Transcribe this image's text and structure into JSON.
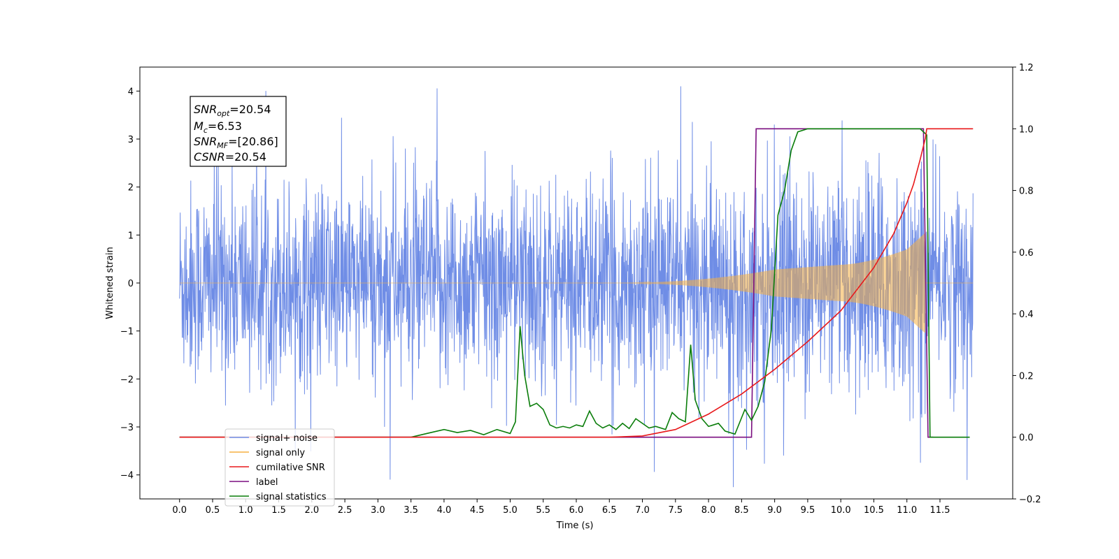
{
  "chart_data": {
    "type": "line",
    "xlabel": "Time (s)",
    "ylabel": "Whitened strain",
    "xlim": [
      -0.6,
      12.6
    ],
    "ylim_left": [
      -4.5,
      4.5
    ],
    "ylim_right": [
      -0.2,
      1.2
    ],
    "x_ticks": [
      "0.0",
      "0.5",
      "1.0",
      "1.5",
      "2.0",
      "2.5",
      "3.0",
      "3.5",
      "4.0",
      "4.5",
      "5.0",
      "5.5",
      "6.0",
      "6.5",
      "7.0",
      "7.5",
      "8.0",
      "8.5",
      "9.0",
      "9.5",
      "10.0",
      "10.5",
      "11.0",
      "11.5"
    ],
    "y_ticks_left": [
      "4",
      "3",
      "2",
      "1",
      "0",
      "−1",
      "−2",
      "−3",
      "−4"
    ],
    "y_ticks_right": [
      "1.2",
      "1.0",
      "0.8",
      "0.6",
      "0.4",
      "0.2",
      "0.0",
      "−0.2"
    ],
    "legend_placement": "lower-left",
    "annotation": {
      "snr_opt": "=20.54",
      "mc": "=6.53",
      "snr_mf": "=[20.86]",
      "csnr": "=20.54"
    },
    "series": [
      {
        "name": "signal+ noise",
        "color": "#6f8de6",
        "axis": "left",
        "description_values": {
          "t_start": 0.0,
          "t_end": 12.0,
          "noise_std": 1.0,
          "peak_max": 4.05,
          "peak_min": -4.1
        }
      },
      {
        "name": "signal only",
        "color": "#f5b041",
        "axis": "left",
        "chirp": {
          "t_start": 6.5,
          "t_merger": 11.28,
          "amp_at_9": 0.28,
          "amp_at_10": 0.38,
          "amp_at_11": 0.7,
          "amp_peak": 1.05
        }
      },
      {
        "name": "cumilative SNR",
        "color": "#e8191b",
        "axis": "right",
        "points": [
          [
            0.0,
            0.0
          ],
          [
            6.5,
            0.0
          ],
          [
            7.0,
            0.004
          ],
          [
            7.5,
            0.025
          ],
          [
            8.0,
            0.075
          ],
          [
            8.5,
            0.14
          ],
          [
            9.0,
            0.22
          ],
          [
            9.5,
            0.31
          ],
          [
            10.0,
            0.41
          ],
          [
            10.5,
            0.55
          ],
          [
            10.8,
            0.66
          ],
          [
            11.0,
            0.76
          ],
          [
            11.1,
            0.82
          ],
          [
            11.2,
            0.9
          ],
          [
            11.28,
            0.97
          ],
          [
            11.3,
            1.0
          ],
          [
            11.6,
            1.0
          ],
          [
            12.0,
            1.0
          ]
        ]
      },
      {
        "name": "label",
        "color": "#7b0f80",
        "axis": "right",
        "points": [
          [
            0.0,
            0.0
          ],
          [
            8.65,
            0.0
          ],
          [
            8.72,
            1.0
          ],
          [
            11.25,
            1.0
          ],
          [
            11.32,
            0.0
          ],
          [
            11.4,
            0.0
          ]
        ]
      },
      {
        "name": "signal statistics",
        "color": "#0a7d0a",
        "axis": "right",
        "points": [
          [
            0.0,
            0.0
          ],
          [
            3.5,
            0.0
          ],
          [
            3.8,
            0.015
          ],
          [
            4.0,
            0.025
          ],
          [
            4.2,
            0.015
          ],
          [
            4.4,
            0.022
          ],
          [
            4.6,
            0.008
          ],
          [
            4.8,
            0.025
          ],
          [
            5.0,
            0.012
          ],
          [
            5.08,
            0.05
          ],
          [
            5.15,
            0.36
          ],
          [
            5.22,
            0.2
          ],
          [
            5.3,
            0.1
          ],
          [
            5.4,
            0.11
          ],
          [
            5.5,
            0.09
          ],
          [
            5.6,
            0.04
          ],
          [
            5.7,
            0.03
          ],
          [
            5.8,
            0.035
          ],
          [
            5.9,
            0.03
          ],
          [
            6.0,
            0.04
          ],
          [
            6.1,
            0.035
          ],
          [
            6.2,
            0.085
          ],
          [
            6.3,
            0.045
          ],
          [
            6.4,
            0.03
          ],
          [
            6.5,
            0.04
          ],
          [
            6.6,
            0.025
          ],
          [
            6.7,
            0.045
          ],
          [
            6.8,
            0.028
          ],
          [
            6.9,
            0.06
          ],
          [
            7.0,
            0.045
          ],
          [
            7.1,
            0.03
          ],
          [
            7.2,
            0.035
          ],
          [
            7.35,
            0.025
          ],
          [
            7.45,
            0.08
          ],
          [
            7.55,
            0.06
          ],
          [
            7.65,
            0.05
          ],
          [
            7.73,
            0.3
          ],
          [
            7.8,
            0.12
          ],
          [
            7.9,
            0.06
          ],
          [
            8.0,
            0.035
          ],
          [
            8.15,
            0.045
          ],
          [
            8.25,
            0.02
          ],
          [
            8.4,
            0.01
          ],
          [
            8.55,
            0.09
          ],
          [
            8.65,
            0.055
          ],
          [
            8.75,
            0.1
          ],
          [
            8.85,
            0.18
          ],
          [
            8.95,
            0.35
          ],
          [
            9.05,
            0.72
          ],
          [
            9.15,
            0.8
          ],
          [
            9.25,
            0.93
          ],
          [
            9.35,
            0.99
          ],
          [
            9.5,
            1.0
          ],
          [
            11.2,
            1.0
          ],
          [
            11.3,
            0.98
          ],
          [
            11.35,
            0.0
          ],
          [
            11.45,
            0.0
          ],
          [
            11.95,
            0.0
          ]
        ]
      }
    ]
  }
}
